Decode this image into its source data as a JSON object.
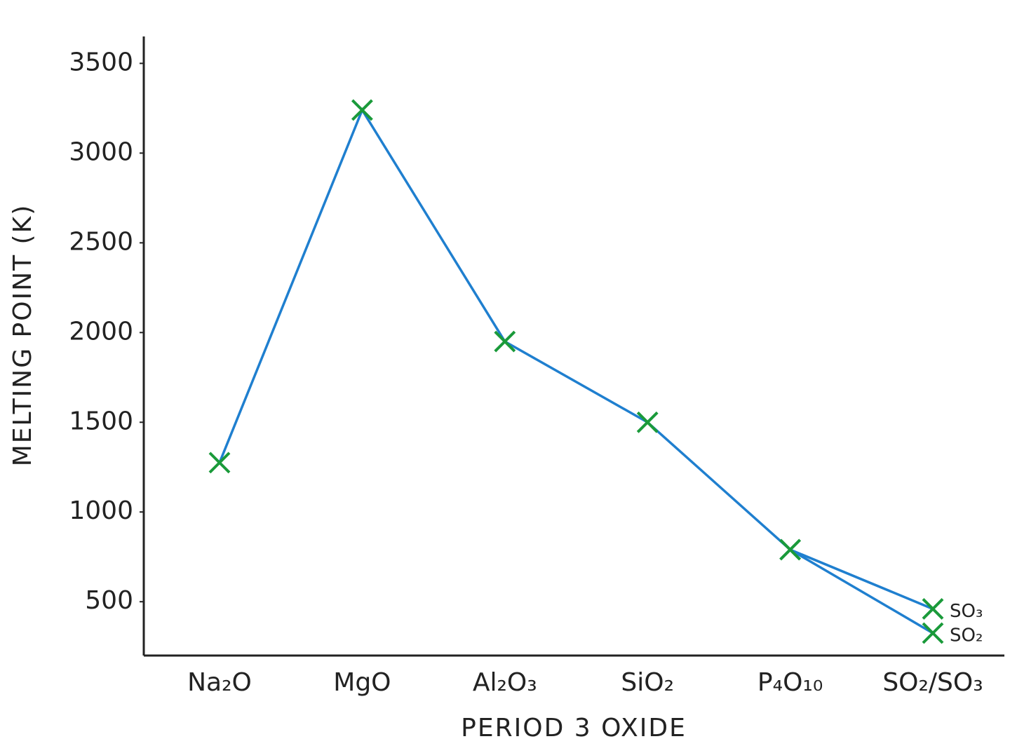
{
  "chart_data": {
    "type": "line",
    "x_label": "PERIOD 3 OXIDE",
    "y_label": "MELTING POINT (K)",
    "categories": [
      "Na₂O",
      "MgO",
      "Al₂O₃",
      "SiO₂",
      "P₄O₁₀",
      "SO₂/SO₃"
    ],
    "series": [
      {
        "name": "SO₃",
        "values": [
          1275,
          3240,
          1950,
          1500,
          790,
          460
        ]
      },
      {
        "name": "SO₂",
        "values": [
          null,
          null,
          null,
          null,
          790,
          325
        ]
      }
    ],
    "line_color": "#1f7fcf",
    "marker_color": "#1a9a3a",
    "ylim": [
      200,
      3650
    ],
    "yticks": [
      500,
      1000,
      1500,
      2000,
      2500,
      3000,
      3500
    ],
    "grid": false
  }
}
